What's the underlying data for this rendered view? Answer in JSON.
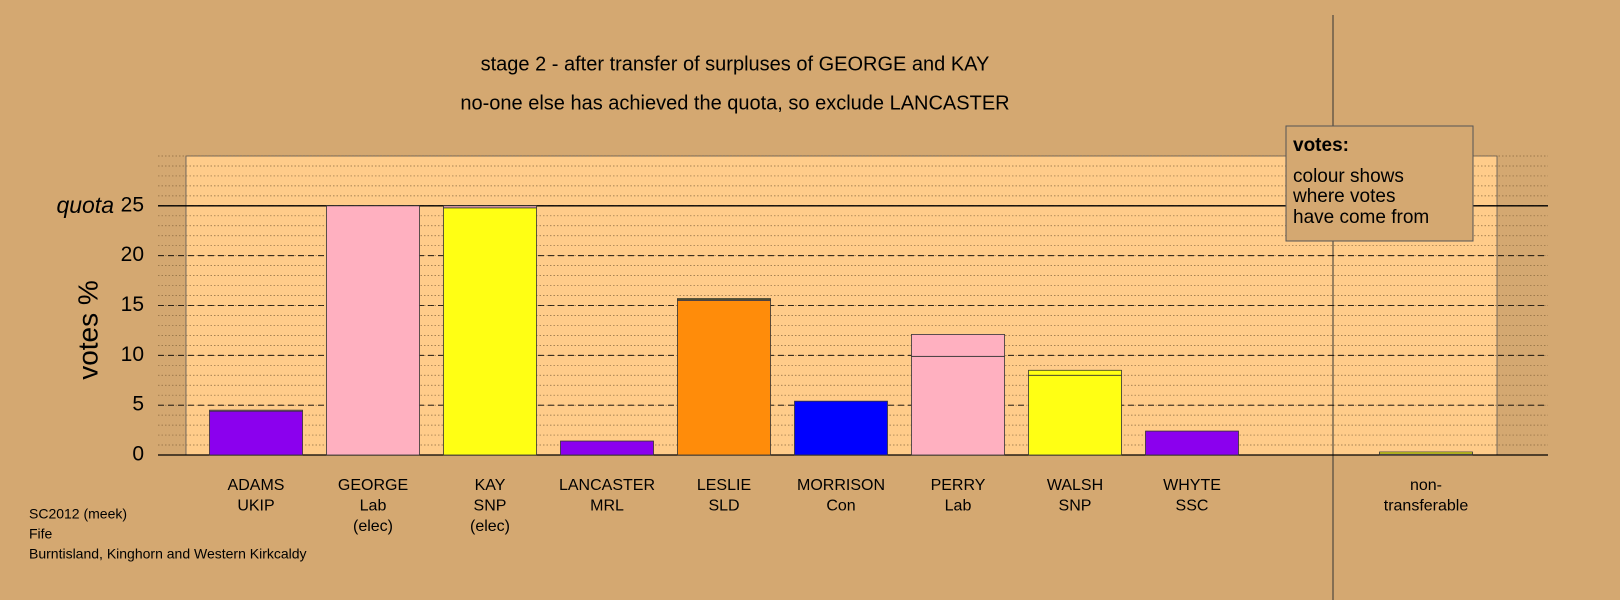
{
  "chart_data": {
    "type": "bar",
    "stacked": true,
    "title": "stage 2 - after transfer of surpluses of GEORGE and KAY",
    "subtitle": "no-one else has achieved the quota, so exclude LANCASTER",
    "y_label": "votes %",
    "quota_label": "quota",
    "quota": 25,
    "categories": [
      [
        "ADAMS",
        "UKIP"
      ],
      [
        "GEORGE",
        "Lab",
        "(elec)"
      ],
      [
        "KAY",
        "SNP",
        "(elec)"
      ],
      [
        "LANCASTER",
        "MRL"
      ],
      [
        "LESLIE",
        "SLD"
      ],
      [
        "MORRISON",
        "Con"
      ],
      [
        "PERRY",
        "Lab"
      ],
      [
        "WALSH",
        "SNP"
      ],
      [
        "WHYTE",
        "SSC"
      ],
      [
        "non-",
        "transferable"
      ]
    ],
    "series": [
      {
        "colors": [
          "#8b00ee",
          "#ffb0c0",
          "#ffff14",
          "#8b00ee",
          "#ff8c0a",
          "#0000ff",
          "#ffb0c0",
          "#ffff14",
          "#8b00ee",
          "#a07850"
        ],
        "values": [
          4.4,
          25,
          24.8,
          1.4,
          15.5,
          5.4,
          9.9,
          8.0,
          2.4,
          null
        ]
      },
      {
        "color": "#ffb0c0",
        "values": [
          0.1,
          null,
          0.2,
          null,
          0.1,
          null,
          2.2,
          null,
          null,
          0.1
        ]
      },
      {
        "color": "#ffff14",
        "values": [
          null,
          null,
          null,
          null,
          0.1,
          null,
          null,
          0.5,
          null,
          0.2
        ]
      }
    ],
    "ylim": [
      0,
      30
    ],
    "yticks": [
      0,
      5,
      10,
      15,
      20,
      25
    ],
    "minor_step": 1,
    "grid": true,
    "legend_box": {
      "title": "votes:",
      "lines": [
        "colour shows",
        "where votes",
        "have come from"
      ]
    },
    "footnote": [
      "SC2012 (meek)",
      "Fife",
      "Burntisland, Kinghorn and Western Kirkcaldy"
    ]
  }
}
